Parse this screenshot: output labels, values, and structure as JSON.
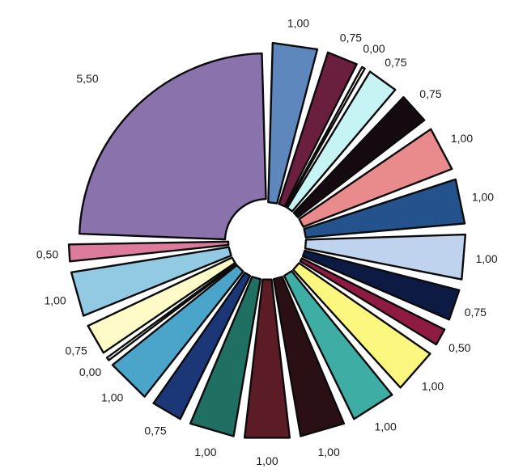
{
  "chart_data": {
    "type": "pie",
    "title": "",
    "exploded": true,
    "start_angle_deg": 90,
    "direction": "clockwise",
    "slices": [
      {
        "value": 1.0,
        "label": "1,00",
        "color": "#5e87bd"
      },
      {
        "value": 0.75,
        "label": "0,75",
        "color": "#6b1f3e"
      },
      {
        "value": 0.0,
        "label": "0,00",
        "color": "#ffffff"
      },
      {
        "value": 0.75,
        "label": "0,75",
        "color": "#c6f4f4"
      },
      {
        "value": 0.75,
        "label": "0,75",
        "color": "#140a0f"
      },
      {
        "value": 1.0,
        "label": "1,00",
        "color": "#e98a8d"
      },
      {
        "value": 1.0,
        "label": "1,00",
        "color": "#24528c"
      },
      {
        "value": 1.0,
        "label": "1,00",
        "color": "#bfd3ee"
      },
      {
        "value": 0.75,
        "label": "0,75",
        "color": "#0d1a44"
      },
      {
        "value": 0.5,
        "label": "0,50",
        "color": "#8f1b43"
      },
      {
        "value": 1.0,
        "label": "1,00",
        "color": "#fcf77e"
      },
      {
        "value": 1.0,
        "label": "1,00",
        "color": "#3eaea4"
      },
      {
        "value": 1.0,
        "label": "1,00",
        "color": "#2a1015"
      },
      {
        "value": 1.0,
        "label": "1,00",
        "color": "#5c1c25"
      },
      {
        "value": 1.0,
        "label": "1,00",
        "color": "#1f6f62"
      },
      {
        "value": 0.75,
        "label": "0,75",
        "color": "#1b3778"
      },
      {
        "value": 1.0,
        "label": "1,00",
        "color": "#4ba4c9"
      },
      {
        "value": 0.0,
        "label": "0,00",
        "color": "#ffffff"
      },
      {
        "value": 0.75,
        "label": "0,75",
        "color": "#fefbc8"
      },
      {
        "value": 1.0,
        "label": "1,00",
        "color": "#92cae3"
      },
      {
        "value": 0.5,
        "label": "0,50",
        "color": "#dd7b9d"
      },
      {
        "value": 5.5,
        "label": "5,50",
        "color": "#8a73ad"
      }
    ]
  }
}
